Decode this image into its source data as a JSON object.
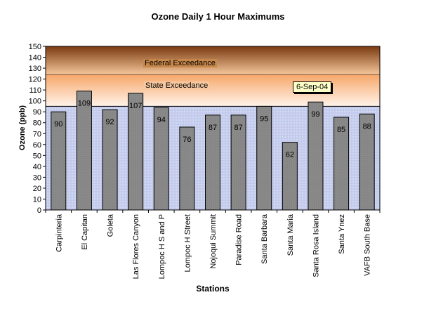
{
  "chart_data": {
    "type": "bar",
    "title": "Ozone Daily 1 Hour Maximums",
    "xlabel": "Stations",
    "ylabel": "Ozone (ppb)",
    "ylim": [
      0,
      150
    ],
    "ytick_step": 10,
    "categories": [
      "Carpinteria",
      "El Capitan",
      "Goleta",
      "Las Flores Canyon",
      "Lompoc H S and P",
      "Lompoc H Street",
      "Nojoqui Summit",
      "Paradise Road",
      "Santa Barbara",
      "Santa Maria",
      "Santa Rosa Island",
      "Santa Ynez",
      "VAFB South Base"
    ],
    "values": [
      90,
      109,
      92,
      107,
      94,
      76,
      87,
      87,
      95,
      62,
      99,
      85,
      88
    ],
    "bands": [
      {
        "label": "Federal Exceedance",
        "from": 124,
        "to": 150
      },
      {
        "label": "State Exceedance",
        "from": 95,
        "to": 124
      }
    ],
    "annotation": "6-Sep-04",
    "colors": {
      "bar": "#808080",
      "federal_top": "#7a3a10",
      "federal_bottom": "#f6c79c",
      "state_top": "#f7a76a",
      "state_bottom": "#fff3ea",
      "background": "#c0cdee"
    }
  }
}
